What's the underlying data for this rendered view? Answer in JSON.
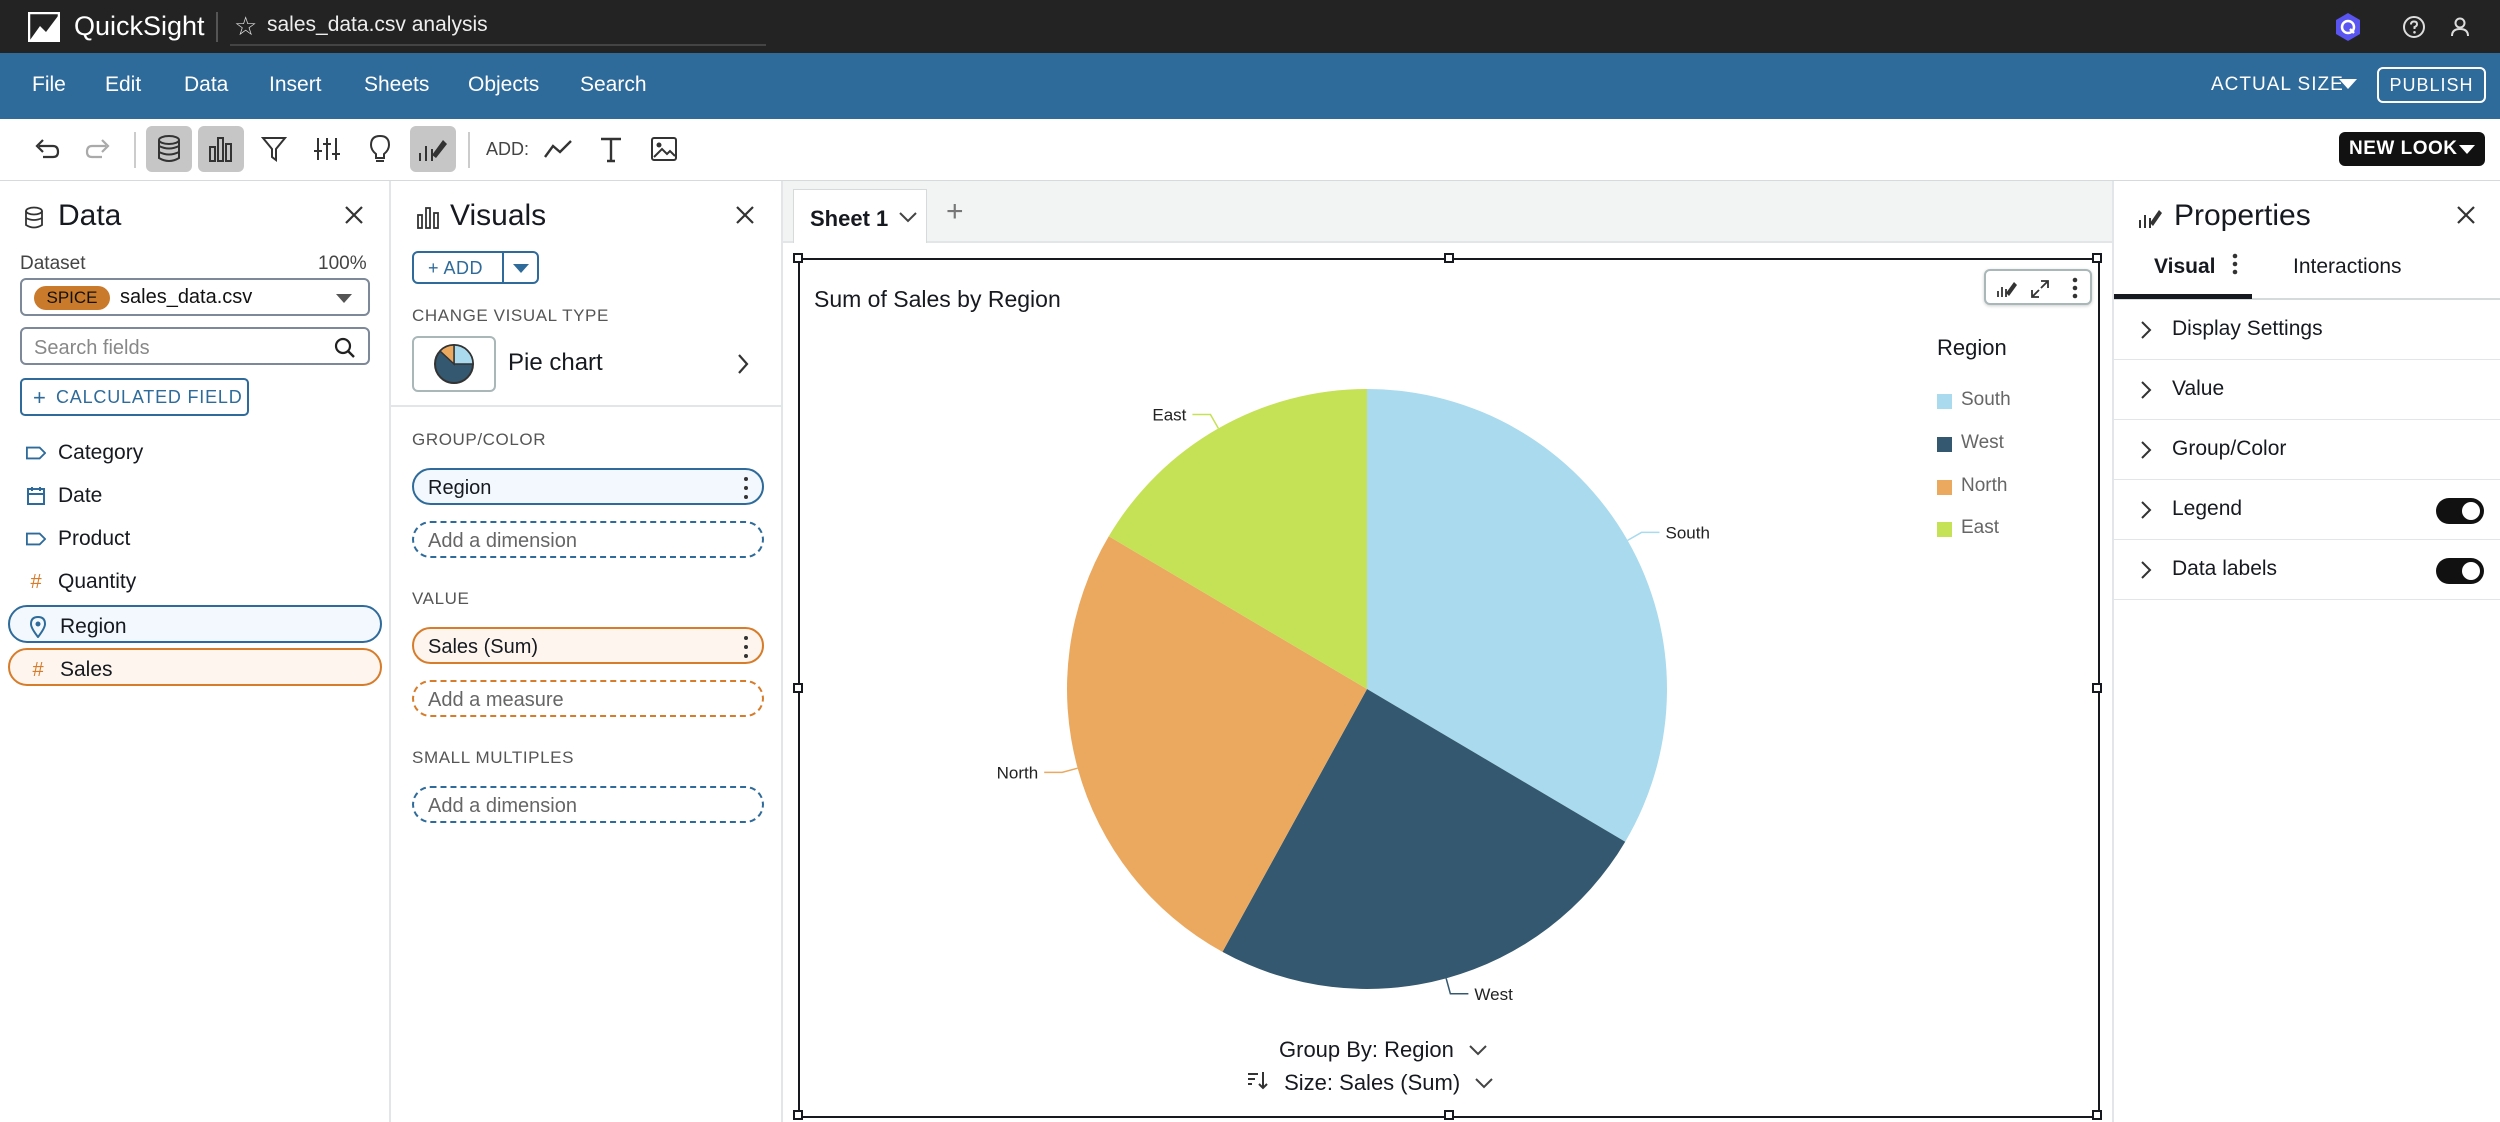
{
  "app": {
    "name": "QuickSight",
    "document_title": "sales_data.csv analysis"
  },
  "menu": {
    "items": [
      "File",
      "Edit",
      "Data",
      "Insert",
      "Sheets",
      "Objects",
      "Search"
    ],
    "zoom_label": "ACTUAL SIZE",
    "publish_label": "PUBLISH"
  },
  "toolbar": {
    "add_label": "ADD:",
    "new_look_label": "NEW LOOK"
  },
  "data_panel": {
    "title": "Data",
    "dataset_label": "Dataset",
    "dataset_percent": "100%",
    "spice_badge": "SPICE",
    "dataset_name": "sales_data.csv",
    "search_placeholder": "Search fields",
    "calculated_field_label": "CALCULATED FIELD",
    "fields": [
      {
        "name": "Category",
        "icon": "tag-icon",
        "kind": "dimension"
      },
      {
        "name": "Date",
        "icon": "calendar-icon",
        "kind": "dimension"
      },
      {
        "name": "Product",
        "icon": "tag-icon",
        "kind": "dimension"
      },
      {
        "name": "Quantity",
        "icon": "hash-icon",
        "kind": "measure"
      },
      {
        "name": "Region",
        "icon": "map-pin-icon",
        "kind": "dimension",
        "selected": true
      },
      {
        "name": "Sales",
        "icon": "hash-icon",
        "kind": "measure",
        "selected": true
      }
    ]
  },
  "visuals_panel": {
    "title": "Visuals",
    "add_label": "ADD",
    "change_type_label": "CHANGE VISUAL TYPE",
    "visual_type": "Pie chart",
    "group_color_label": "GROUP/COLOR",
    "group_field": "Region",
    "add_dimension_placeholder": "Add a dimension",
    "value_label": "VALUE",
    "value_field": "Sales (Sum)",
    "add_measure_placeholder": "Add a measure",
    "small_multiples_label": "SMALL MULTIPLES",
    "small_multiples_placeholder": "Add a dimension"
  },
  "canvas": {
    "sheet_tab": "Sheet 1",
    "visual_title": "Sum of Sales by Region",
    "group_by_label": "Group By: Region",
    "size_label": "Size: Sales (Sum)"
  },
  "properties_panel": {
    "title": "Properties",
    "tabs": [
      "Visual",
      "Interactions"
    ],
    "active_tab": "Visual",
    "sections": [
      {
        "label": "Display Settings"
      },
      {
        "label": "Value"
      },
      {
        "label": "Group/Color"
      },
      {
        "label": "Legend",
        "toggle": true
      },
      {
        "label": "Data labels",
        "toggle": true
      }
    ]
  },
  "colors": {
    "menubar": "#2f6b9a",
    "south": "#a9daee",
    "west": "#34586f",
    "north": "#eaa95f",
    "east": "#c5e155"
  },
  "chart_data": {
    "type": "pie",
    "title": "Sum of Sales by Region",
    "legend_title": "Region",
    "legend_position": "right",
    "categories": [
      "South",
      "West",
      "North",
      "East"
    ],
    "values": [
      33.5,
      24.5,
      25.5,
      16.5
    ],
    "value_unit": "percent of total (estimated)",
    "colors": [
      "#a9daee",
      "#34586f",
      "#eaa95f",
      "#c5e155"
    ],
    "data_labels": [
      "South",
      "West",
      "North",
      "East"
    ]
  }
}
